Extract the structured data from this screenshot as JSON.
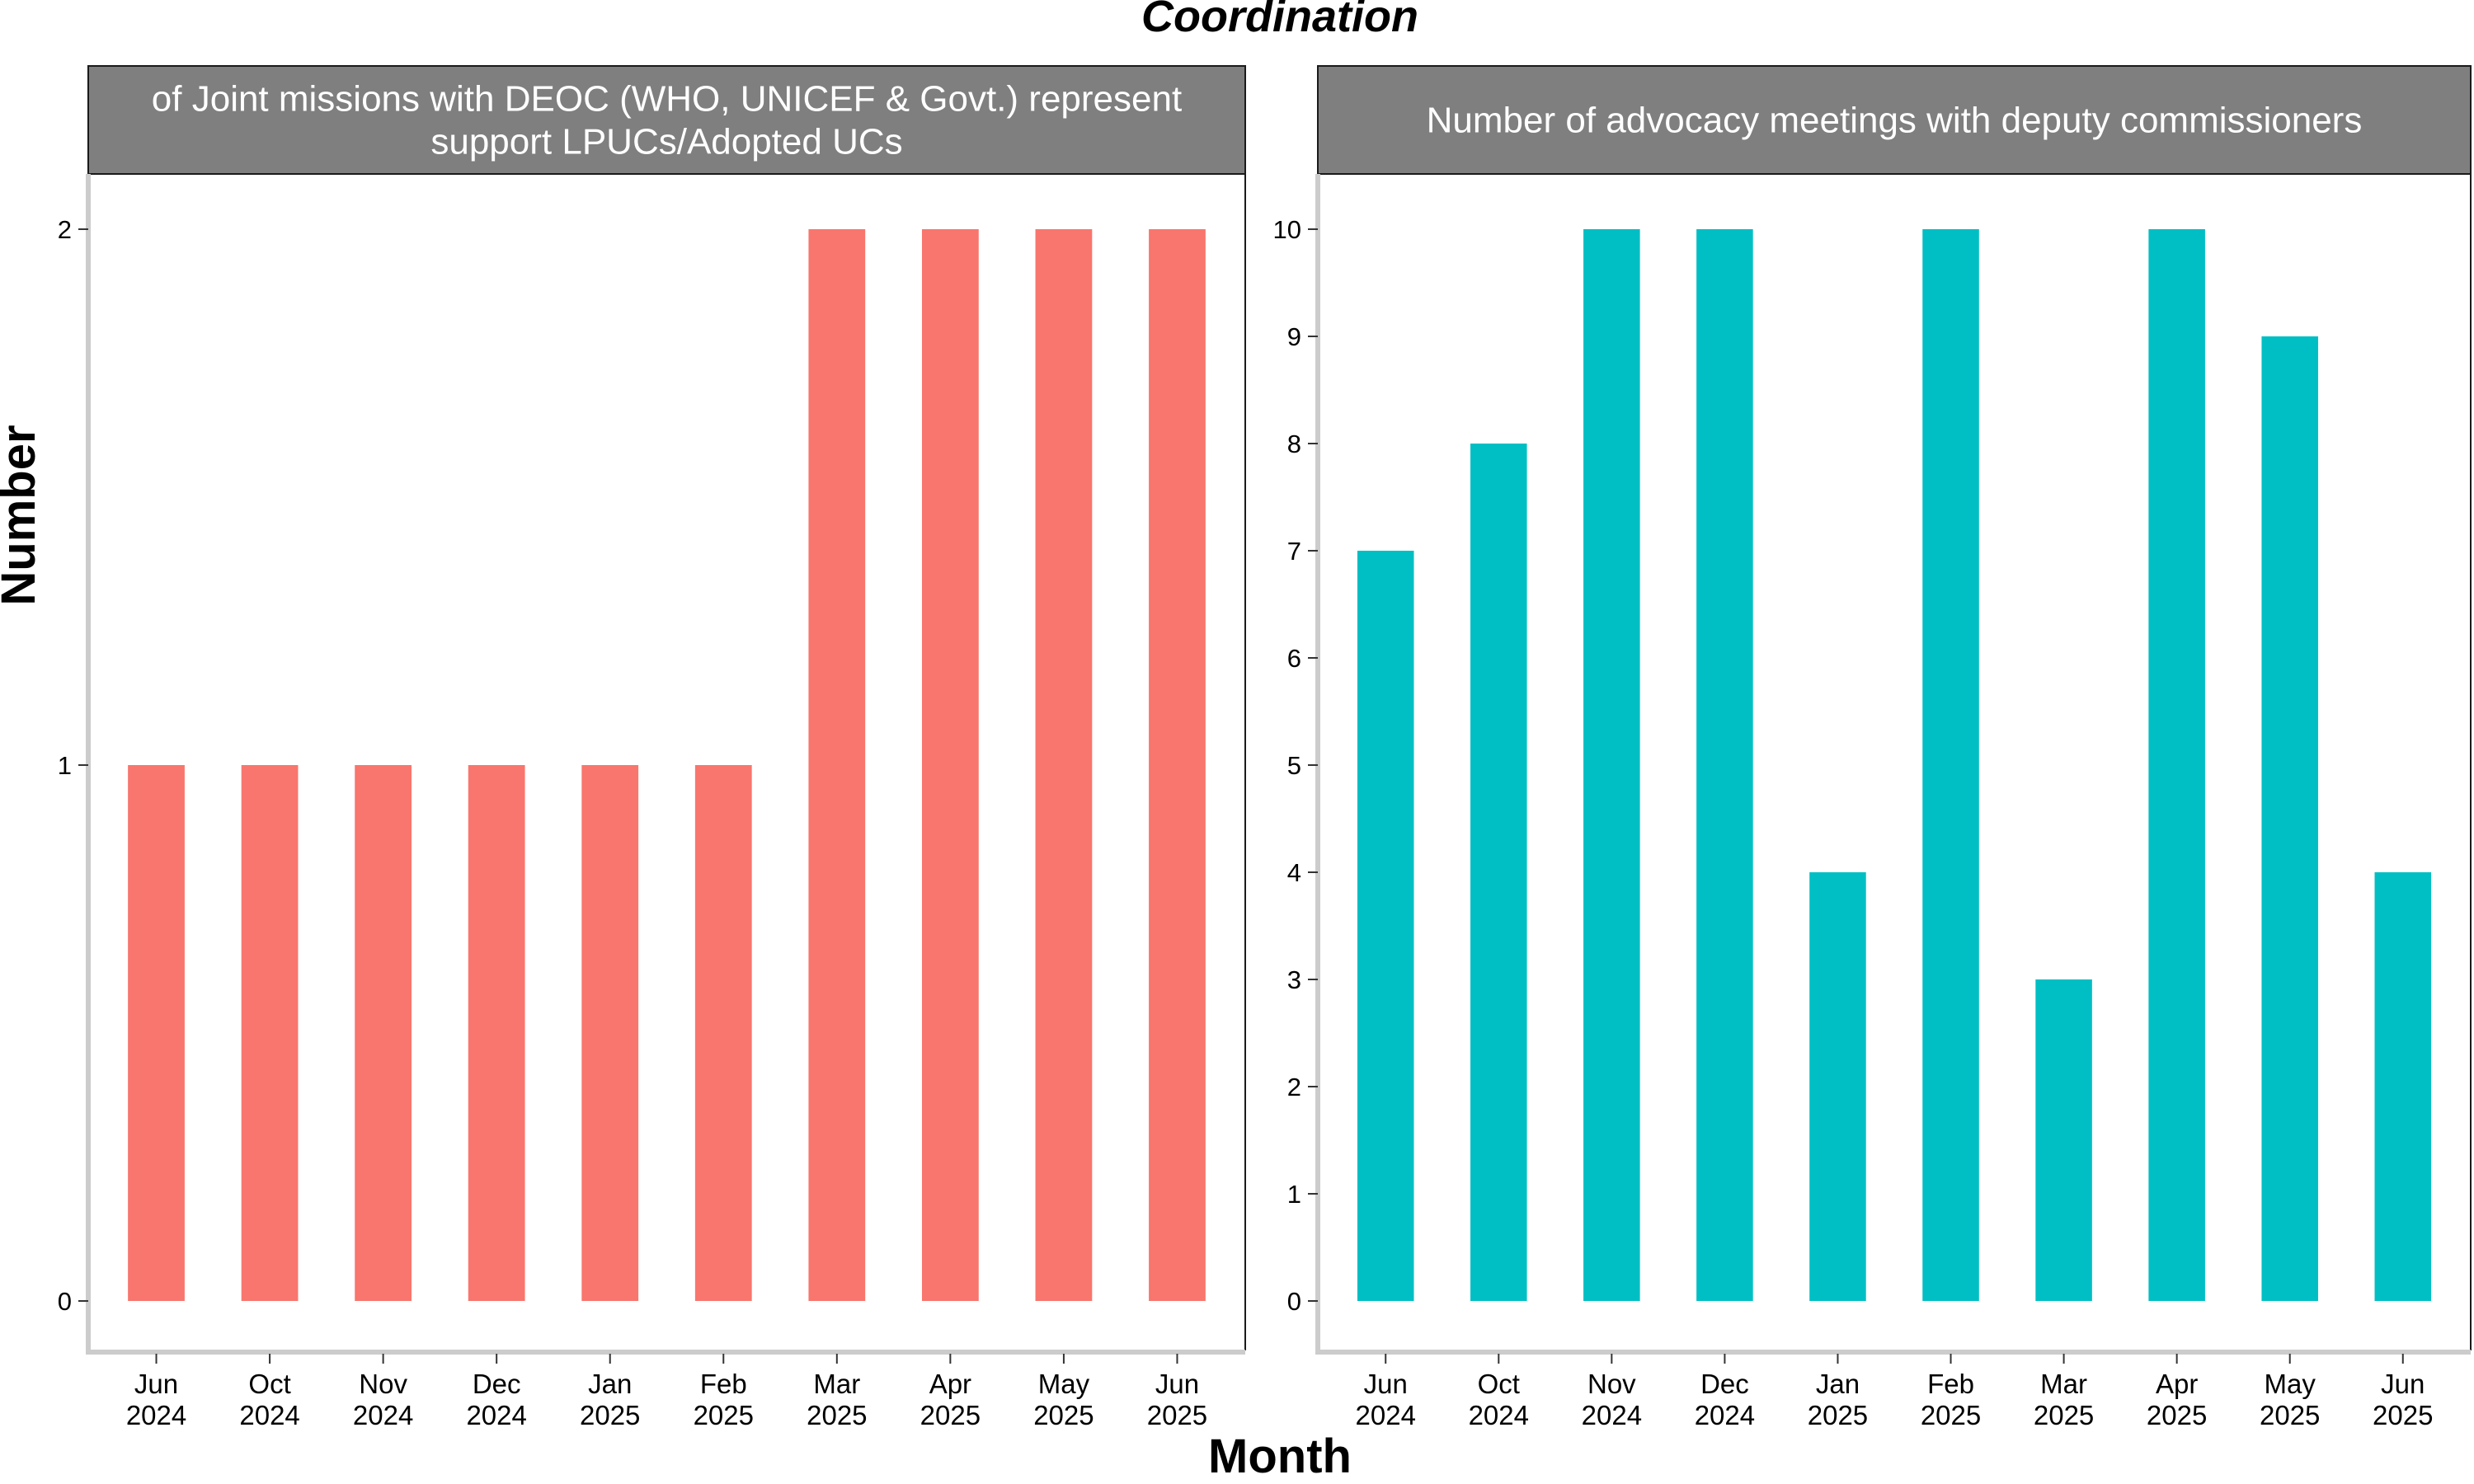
{
  "title": "Coordination",
  "xlabel": "Month",
  "ylabel": "Number",
  "chart_data": [
    {
      "type": "bar",
      "strip_title": [
        "of Joint missions with DEOC (WHO, UNICEF & Govt.) represent",
        "support LPUCs/Adopted UCs"
      ],
      "categories": [
        "Jun 2024",
        "Oct 2024",
        "Nov 2024",
        "Dec 2024",
        "Jan 2025",
        "Feb 2025",
        "Mar 2025",
        "Apr 2025",
        "May 2025",
        "Jun 2025"
      ],
      "values": [
        1,
        1,
        1,
        1,
        1,
        1,
        2,
        2,
        2,
        2
      ],
      "ylim": [
        0,
        2
      ],
      "yticks": [
        0,
        1,
        2
      ],
      "color": "#F8766D",
      "grid": false
    },
    {
      "type": "bar",
      "strip_title": [
        "Number of advocacy meetings with deputy commissioners"
      ],
      "categories": [
        "Jun 2024",
        "Oct 2024",
        "Nov 2024",
        "Dec 2024",
        "Jan 2025",
        "Feb 2025",
        "Mar 2025",
        "Apr 2025",
        "May 2025",
        "Jun 2025"
      ],
      "values": [
        7,
        8,
        10,
        10,
        4,
        10,
        3,
        10,
        9,
        4
      ],
      "ylim": [
        0,
        10
      ],
      "yticks": [
        0,
        1,
        2,
        3,
        4,
        5,
        6,
        7,
        8,
        9,
        10
      ],
      "color": "#00BFC4",
      "grid": false
    }
  ]
}
